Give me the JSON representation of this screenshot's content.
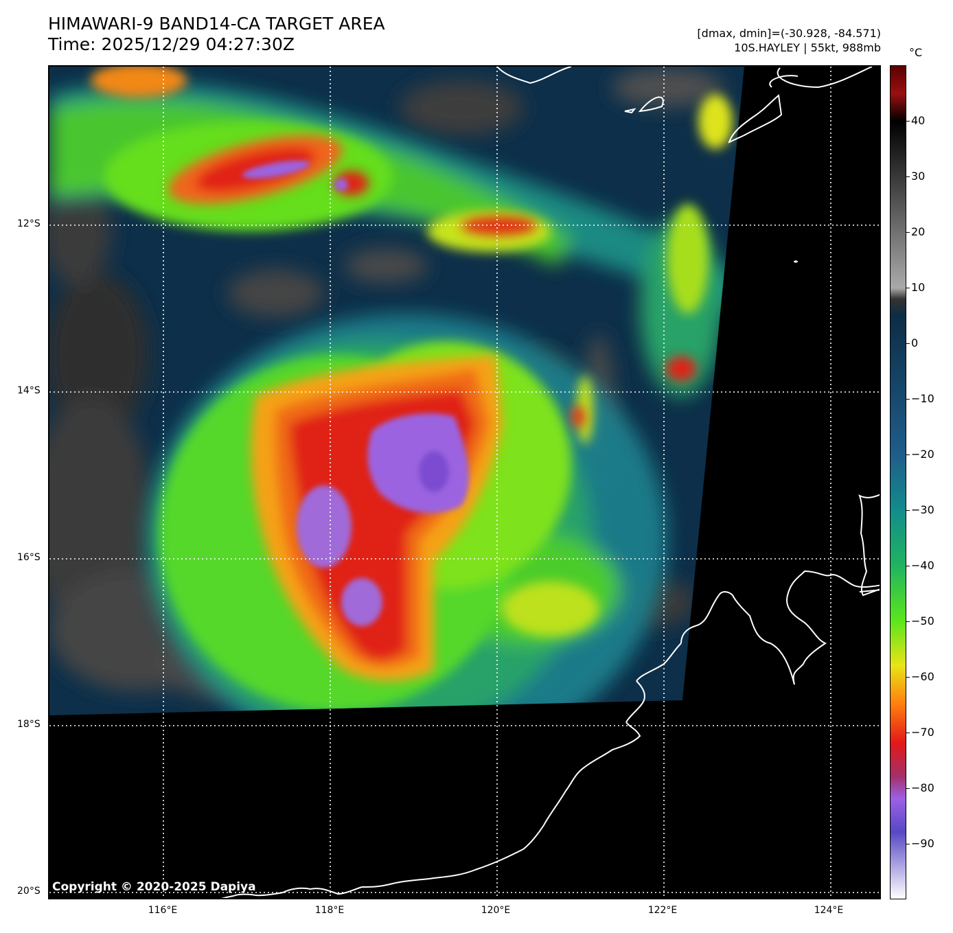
{
  "title": {
    "line1": "HIMAWARI-9 BAND14-CA TARGET AREA",
    "line2": "Time: 2025/12/29 04:27:30Z"
  },
  "meta": {
    "range": "[dmax, dmin]=(-30.928, -84.571)",
    "storm": "10S.HAYLEY | 55kt, 988mb"
  },
  "copyright": "Copyright © 2020-2025 Dapiya",
  "lat_labels": [
    "12°S",
    "14°S",
    "16°S",
    "18°S",
    "20°S"
  ],
  "lon_labels": [
    "116°E",
    "118°E",
    "120°E",
    "122°E",
    "124°E"
  ],
  "colorbar": {
    "unit": "°C",
    "tick_labels": [
      "40",
      "30",
      "20",
      "10",
      "0",
      "−10",
      "−20",
      "−30",
      "−40",
      "−50",
      "−60",
      "−70",
      "−80",
      "−90"
    ],
    "stops": [
      {
        "value": 50,
        "color": "#5a0000"
      },
      {
        "value": 45,
        "color": "#9a1010"
      },
      {
        "value": 40,
        "color": "#000000"
      },
      {
        "value": 10,
        "color": "#aaaaaa"
      },
      {
        "value": 8,
        "color": "#333333"
      },
      {
        "value": 5,
        "color": "#0c2d46"
      },
      {
        "value": -20,
        "color": "#1f5d8a"
      },
      {
        "value": -30,
        "color": "#128c8c"
      },
      {
        "value": -40,
        "color": "#20b460"
      },
      {
        "value": -50,
        "color": "#5ce61c"
      },
      {
        "value": -58,
        "color": "#e8e416"
      },
      {
        "value": -65,
        "color": "#ff7e0e"
      },
      {
        "value": -72,
        "color": "#e21818"
      },
      {
        "value": -78,
        "color": "#a4306a"
      },
      {
        "value": -82,
        "color": "#9c60e6"
      },
      {
        "value": -88,
        "color": "#5848c4"
      },
      {
        "value": -100,
        "color": "#ffffff"
      }
    ]
  },
  "colors": {
    "cold_top": "#a06ae8",
    "deep_convection": "#e52a1a",
    "mid_cloud": "#63e21e",
    "warm_ocean": "#0c2d46",
    "no_data": "#000000",
    "coastline": "#ffffff"
  }
}
